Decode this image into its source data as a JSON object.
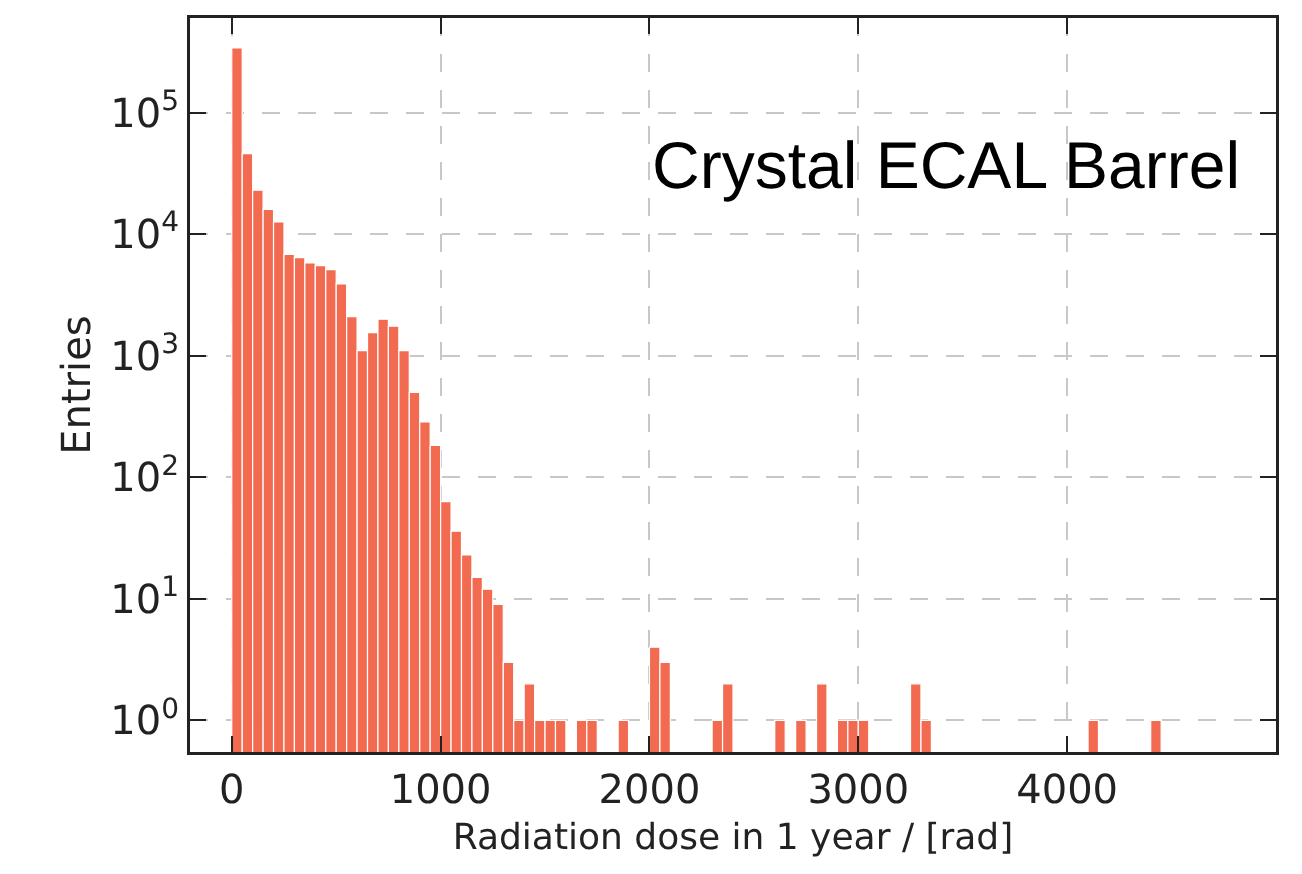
{
  "chart_data": {
    "type": "histogram",
    "xlabel": "Radiation dose in 1 year / [rad]",
    "ylabel": "Entries",
    "annotations": [
      "Crystal ECAL Barrel"
    ],
    "color": "#f26b50",
    "bins": [
      0,
      50,
      100,
      150,
      200,
      250,
      300,
      350,
      400,
      450,
      500,
      550,
      600,
      650,
      700,
      750,
      800,
      850,
      900,
      950,
      1000,
      1050,
      1100,
      1150,
      1200,
      1250,
      1300,
      1350,
      1400,
      1450,
      1500,
      1550,
      1600,
      1650,
      1700,
      1750,
      1800,
      1850,
      1900,
      1950,
      2000,
      2050,
      2100,
      2150,
      2200,
      2250,
      2300,
      2350,
      2400,
      2450,
      2500,
      2550,
      2600,
      2650,
      2700,
      2750,
      2800,
      2850,
      2900,
      2950,
      3000,
      3050,
      3100,
      3150,
      3200,
      3250,
      3300,
      3350,
      3400,
      3450,
      3500,
      3550,
      3600,
      3650,
      3700,
      3750,
      3800,
      3850,
      3900,
      3950,
      4000,
      4050,
      4100,
      4150,
      4200,
      4250,
      4300,
      4350,
      4400,
      4450
    ],
    "values": [
      340000,
      46000,
      23000,
      16000,
      12600,
      6800,
      6400,
      5800,
      5500,
      5100,
      3900,
      2100,
      1100,
      1550,
      2000,
      1750,
      1100,
      500,
      285,
      183,
      63,
      36,
      23,
      15,
      12,
      9,
      3,
      1,
      2,
      1,
      1,
      1,
      null,
      1,
      1,
      null,
      null,
      1,
      null,
      null,
      4,
      3,
      null,
      null,
      null,
      null,
      1,
      2,
      null,
      null,
      null,
      null,
      1,
      null,
      1,
      null,
      2,
      null,
      1,
      1,
      1,
      null,
      null,
      null,
      null,
      2,
      1,
      null,
      null,
      null,
      null,
      null,
      null,
      null,
      null,
      null,
      null,
      null,
      null,
      null,
      null,
      null,
      1,
      null,
      null,
      null,
      null,
      null,
      1
    ],
    "log": "y",
    "xlim": [
      -200,
      5000
    ],
    "xticks": [
      0,
      1000,
      2000,
      3000,
      4000
    ],
    "ylim": [
      0.55,
      600000
    ],
    "yticks": [
      {
        "value": 1,
        "label": "10$^{0}$"
      },
      {
        "value": 10,
        "label": "10$^{1}$"
      },
      {
        "value": 100,
        "label": "10$^{2}$"
      },
      {
        "value": 1000,
        "label": "10$^{3}$"
      },
      {
        "value": 10000,
        "label": "10$^{4}$"
      },
      {
        "value": 100000,
        "label": "10$^{5}$"
      }
    ],
    "grid": true
  }
}
